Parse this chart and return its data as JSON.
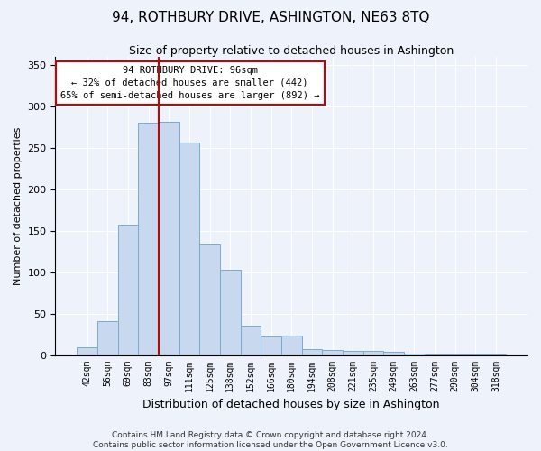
{
  "title": "94, ROTHBURY DRIVE, ASHINGTON, NE63 8TQ",
  "subtitle": "Size of property relative to detached houses in Ashington",
  "xlabel": "Distribution of detached houses by size in Ashington",
  "ylabel": "Number of detached properties",
  "bar_labels": [
    "42sqm",
    "56sqm",
    "69sqm",
    "83sqm",
    "97sqm",
    "111sqm",
    "125sqm",
    "138sqm",
    "152sqm",
    "166sqm",
    "180sqm",
    "194sqm",
    "208sqm",
    "221sqm",
    "235sqm",
    "249sqm",
    "263sqm",
    "277sqm",
    "290sqm",
    "304sqm",
    "318sqm"
  ],
  "bar_heights": [
    9,
    41,
    157,
    280,
    282,
    256,
    133,
    103,
    36,
    22,
    23,
    7,
    6,
    5,
    5,
    4,
    2,
    1,
    1,
    1,
    1
  ],
  "bar_color": "#c8d8ee",
  "bar_edgecolor": "#7aaad0",
  "vline_color": "#cc0000",
  "vline_x_index": 4,
  "annotation_text": "94 ROTHBURY DRIVE: 96sqm\n← 32% of detached houses are smaller (442)\n65% of semi-detached houses are larger (892) →",
  "annotation_box_facecolor": "#ffffff",
  "annotation_box_edgecolor": "#cc0000",
  "ylim": [
    0,
    360
  ],
  "yticks": [
    0,
    50,
    100,
    150,
    200,
    250,
    300,
    350
  ],
  "footer_text": "Contains HM Land Registry data © Crown copyright and database right 2024.\nContains public sector information licensed under the Open Government Licence v3.0.",
  "background_color": "#eef2fb",
  "grid_color": "#ffffff",
  "title_fontsize": 11,
  "subtitle_fontsize": 9,
  "xlabel_fontsize": 9,
  "ylabel_fontsize": 8,
  "tick_fontsize": 7,
  "footer_fontsize": 6.5
}
